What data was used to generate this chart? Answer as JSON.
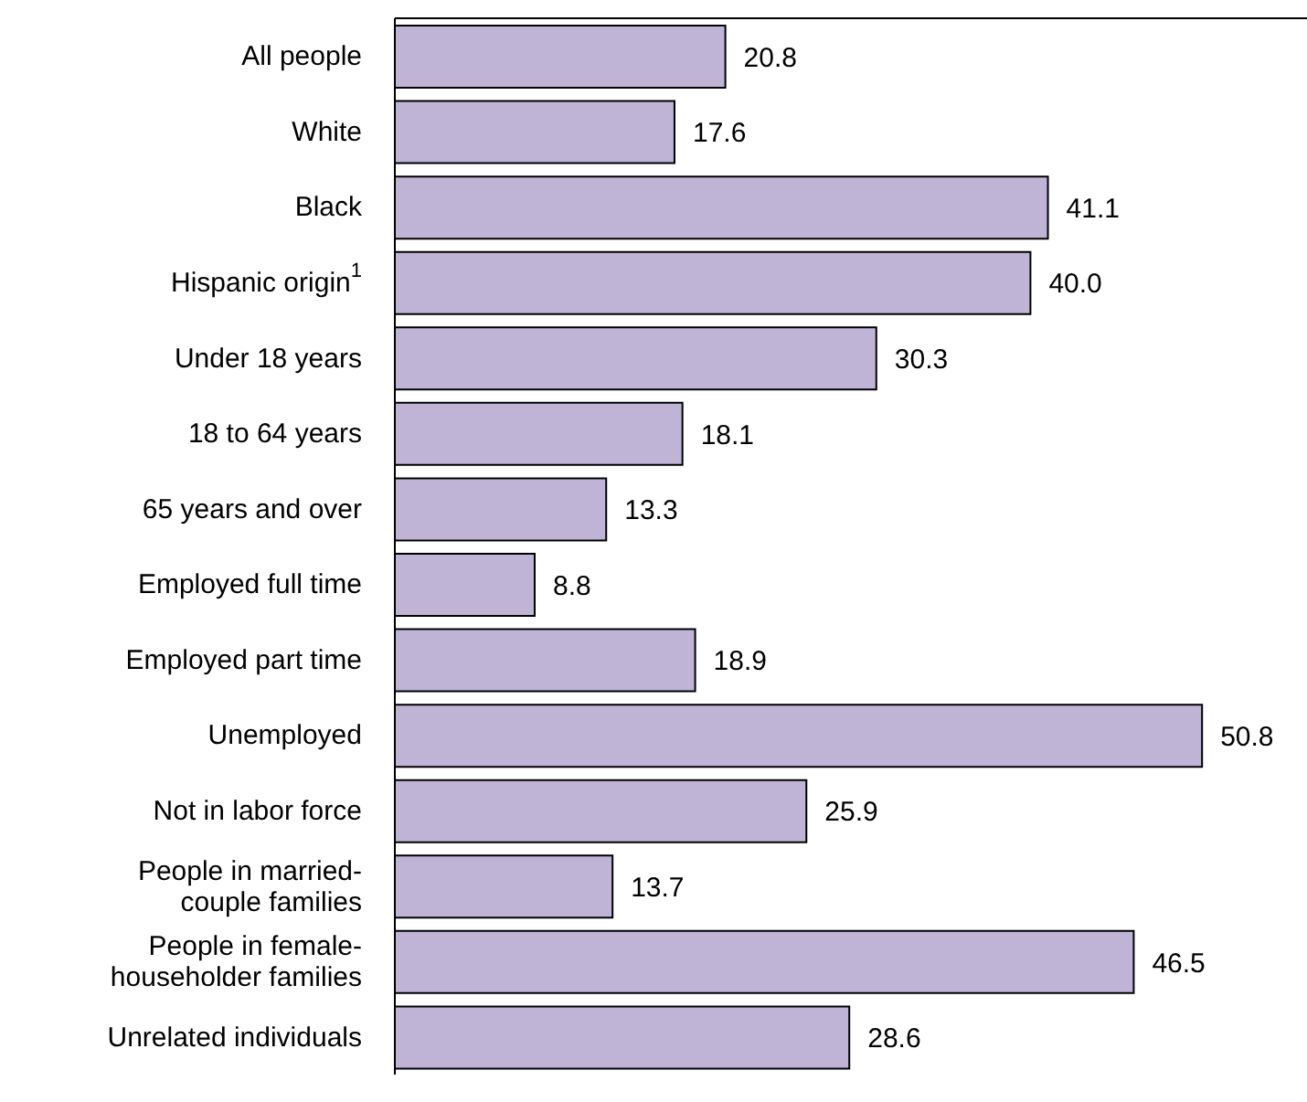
{
  "chart_data": {
    "type": "bar",
    "orientation": "horizontal",
    "color": "#bfb3d6",
    "value_labels": [
      "20.8",
      "17.6",
      "41.1",
      "40.0",
      "30.3",
      "18.1",
      "13.3",
      "8.8",
      "18.9",
      "50.8",
      "25.9",
      "13.7",
      "46.5",
      "28.6"
    ],
    "categories": [
      "All people",
      "White",
      "Black",
      "Hispanic origin$^{1}$",
      "Under 18 years",
      "18 to 64 years",
      "65 years and over",
      "Employed full time",
      "Employed part time",
      "Unemployed",
      "Not in labor force",
      "People in married-couple families",
      "People in female-householder families",
      "Unrelated individuals"
    ],
    "values": [
      20.8,
      17.6,
      41.1,
      40.0,
      30.3,
      18.1,
      13.3,
      8.8,
      18.9,
      50.8,
      25.9,
      13.7,
      46.5,
      28.6
    ]
  }
}
